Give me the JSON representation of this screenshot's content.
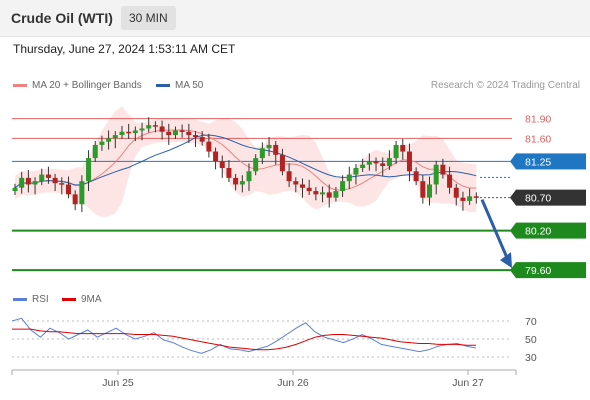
{
  "header": {
    "instrument": "Crude Oil (WTI)",
    "timeframe": "30 MIN"
  },
  "datetime": "Thursday, June 27, 2024 1:53:11 AM CET",
  "legend": {
    "ma20": {
      "label": "MA 20 + Bollinger Bands",
      "color": "#f08080"
    },
    "ma50": {
      "label": "MA 50",
      "color": "#2a5ea8"
    }
  },
  "credit": "Research © 2024 Trading Central",
  "rsi_legend": {
    "rsi": {
      "label": "RSI",
      "color": "#5b7fd8"
    },
    "ma9": {
      "label": "9MA",
      "color": "#e00000"
    }
  },
  "chart_data": [
    {
      "type": "candlestick",
      "title": "Crude Oil (WTI) 30 MIN",
      "x_ticks": [
        "Jun 25",
        "Jun 26",
        "Jun 27"
      ],
      "ylim": [
        79.45,
        82.0
      ],
      "levels": [
        {
          "value": 81.9,
          "label": "81.90",
          "kind": "resistance",
          "color": "#e06060"
        },
        {
          "value": 81.6,
          "label": "81.60",
          "kind": "resistance",
          "color": "#e06060"
        },
        {
          "value": 81.25,
          "label": "81.25",
          "kind": "pivot",
          "color": "#1f77c4"
        },
        {
          "value": 80.7,
          "label": "80.70",
          "kind": "last",
          "color": "#333333"
        },
        {
          "value": 80.2,
          "label": "80.20",
          "kind": "support",
          "color": "#1e8a1e"
        },
        {
          "value": 79.6,
          "label": "79.60",
          "kind": "support",
          "color": "#1e8a1e"
        }
      ],
      "forecast_arrow": {
        "from": 80.7,
        "to": 79.6
      },
      "closes": [
        80.85,
        81.0,
        80.9,
        80.95,
        81.05,
        81.0,
        80.92,
        80.9,
        80.75,
        80.6,
        80.95,
        81.3,
        81.5,
        81.55,
        81.6,
        81.65,
        81.7,
        81.68,
        81.72,
        81.75,
        81.8,
        81.78,
        81.7,
        81.65,
        81.72,
        81.7,
        81.65,
        81.62,
        81.55,
        81.4,
        81.25,
        81.15,
        81.0,
        80.9,
        80.95,
        81.1,
        81.3,
        81.45,
        81.5,
        81.35,
        81.1,
        80.95,
        80.9,
        80.85,
        80.8,
        80.75,
        80.78,
        80.7,
        80.8,
        80.95,
        81.05,
        81.15,
        81.2,
        81.25,
        81.22,
        81.18,
        81.3,
        81.5,
        81.4,
        81.1,
        80.95,
        80.7,
        80.9,
        81.2,
        81.05,
        80.85,
        80.7,
        80.65,
        80.72,
        80.7
      ]
    },
    {
      "type": "line",
      "title": "RSI",
      "y_ticks": [
        70,
        50,
        30
      ],
      "series": [
        {
          "name": "RSI",
          "values": [
            70,
            73,
            60,
            52,
            62,
            57,
            50,
            55,
            60,
            52,
            57,
            62,
            55,
            50,
            53,
            57,
            49,
            46,
            41,
            37,
            34,
            38,
            44,
            39,
            38,
            36,
            39,
            42,
            48,
            55,
            62,
            68,
            58,
            52,
            49,
            46,
            50,
            55,
            50,
            44,
            42,
            40,
            38,
            36,
            38,
            42,
            44,
            45,
            42,
            40
          ]
        },
        {
          "name": "9MA",
          "values": [
            61,
            61,
            61,
            59,
            58,
            58,
            57,
            56,
            56,
            56,
            56,
            56,
            56,
            55,
            55,
            55,
            54,
            53,
            51,
            49,
            47,
            45,
            43,
            41,
            40,
            39,
            38,
            38,
            39,
            41,
            44,
            48,
            52,
            54,
            55,
            55,
            54,
            53,
            52,
            51,
            49,
            47,
            46,
            45,
            45,
            44,
            44,
            44,
            43,
            43
          ]
        }
      ]
    }
  ]
}
